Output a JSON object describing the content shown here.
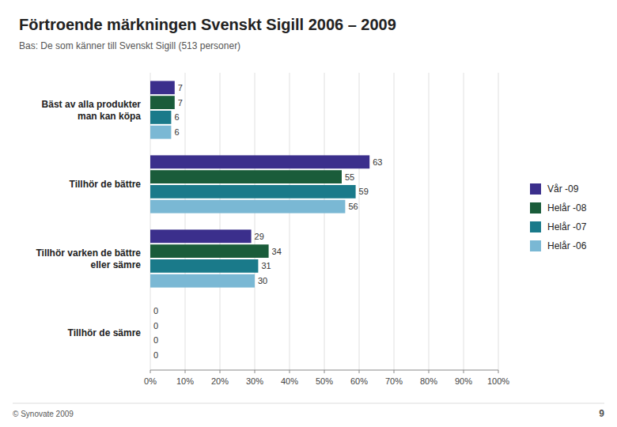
{
  "chart_data": {
    "type": "bar",
    "orientation": "horizontal",
    "title": "Förtroende märkningen Svenskt Sigill 2006 – 2009",
    "subtitle": "Bas: De som känner till Svenskt Sigill (513 personer)",
    "categories": [
      "Bäst av alla produkter\nman kan köpa",
      "Tillhör de bättre",
      "Tillhör varken de bättre\neller sämre",
      "Tillhör de sämre"
    ],
    "series": [
      {
        "name": "Vår -09",
        "color": "#3b2f8c",
        "values": [
          7,
          63,
          29,
          0
        ]
      },
      {
        "name": "Helår -08",
        "color": "#1a5c3a",
        "values": [
          7,
          55,
          34,
          0
        ]
      },
      {
        "name": "Helår -07",
        "color": "#1a7a8a",
        "values": [
          6,
          59,
          31,
          0
        ]
      },
      {
        "name": "Helår -06",
        "color": "#7ab8d4",
        "values": [
          6,
          56,
          30,
          0
        ]
      }
    ],
    "xlim": [
      0,
      100
    ],
    "xticks": [
      {
        "value": 0,
        "label": "0%"
      },
      {
        "value": 10,
        "label": "10%"
      },
      {
        "value": 20,
        "label": "20%"
      },
      {
        "value": 30,
        "label": "30%"
      },
      {
        "value": 40,
        "label": "40%"
      },
      {
        "value": 50,
        "label": "50%"
      },
      {
        "value": 60,
        "label": "60%"
      },
      {
        "value": 70,
        "label": "70%"
      },
      {
        "value": 80,
        "label": "80%"
      },
      {
        "value": 90,
        "label": "90%"
      },
      {
        "value": 100,
        "label": "100%"
      }
    ],
    "grid": true,
    "data_labels": true,
    "legend": "right",
    "annotations": [
      "© Synovate 2009",
      "9"
    ]
  }
}
